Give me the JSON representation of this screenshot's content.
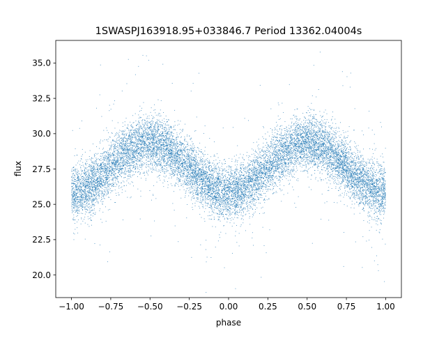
{
  "chart_data": {
    "type": "scatter",
    "title": "1SWASPJ163918.95+033846.7 Period 13362.04004s",
    "xlabel": "phase",
    "ylabel": "flux",
    "xlim": [
      -1.1,
      1.1
    ],
    "ylim": [
      18.4,
      36.6
    ],
    "xticks": [
      -1.0,
      -0.75,
      -0.5,
      -0.25,
      0.0,
      0.25,
      0.5,
      0.75,
      1.0
    ],
    "xtick_labels": [
      "−1.00",
      "−0.75",
      "−0.50",
      "−0.25",
      "0.00",
      "0.25",
      "0.50",
      "0.75",
      "1.00"
    ],
    "yticks": [
      20.0,
      22.5,
      25.0,
      27.5,
      30.0,
      32.5,
      35.0
    ],
    "ytick_labels": [
      "20.0",
      "22.5",
      "25.0",
      "27.5",
      "30.0",
      "32.5",
      "35.0"
    ],
    "grid": false,
    "legend": "none",
    "marker_color": "#1f77b4",
    "series": [
      {
        "model": {
          "phase_range": [
            -1.0,
            1.0
          ],
          "mean_flux": 27.6,
          "amplitude": 1.75,
          "minimum_at_phase": [
            -1.0,
            0.0,
            1.0
          ],
          "maximum_at_phase": [
            -0.5,
            0.5
          ],
          "scatter_sd": 0.95,
          "points": 14000,
          "outlier_fraction": 0.03
        }
      }
    ]
  }
}
